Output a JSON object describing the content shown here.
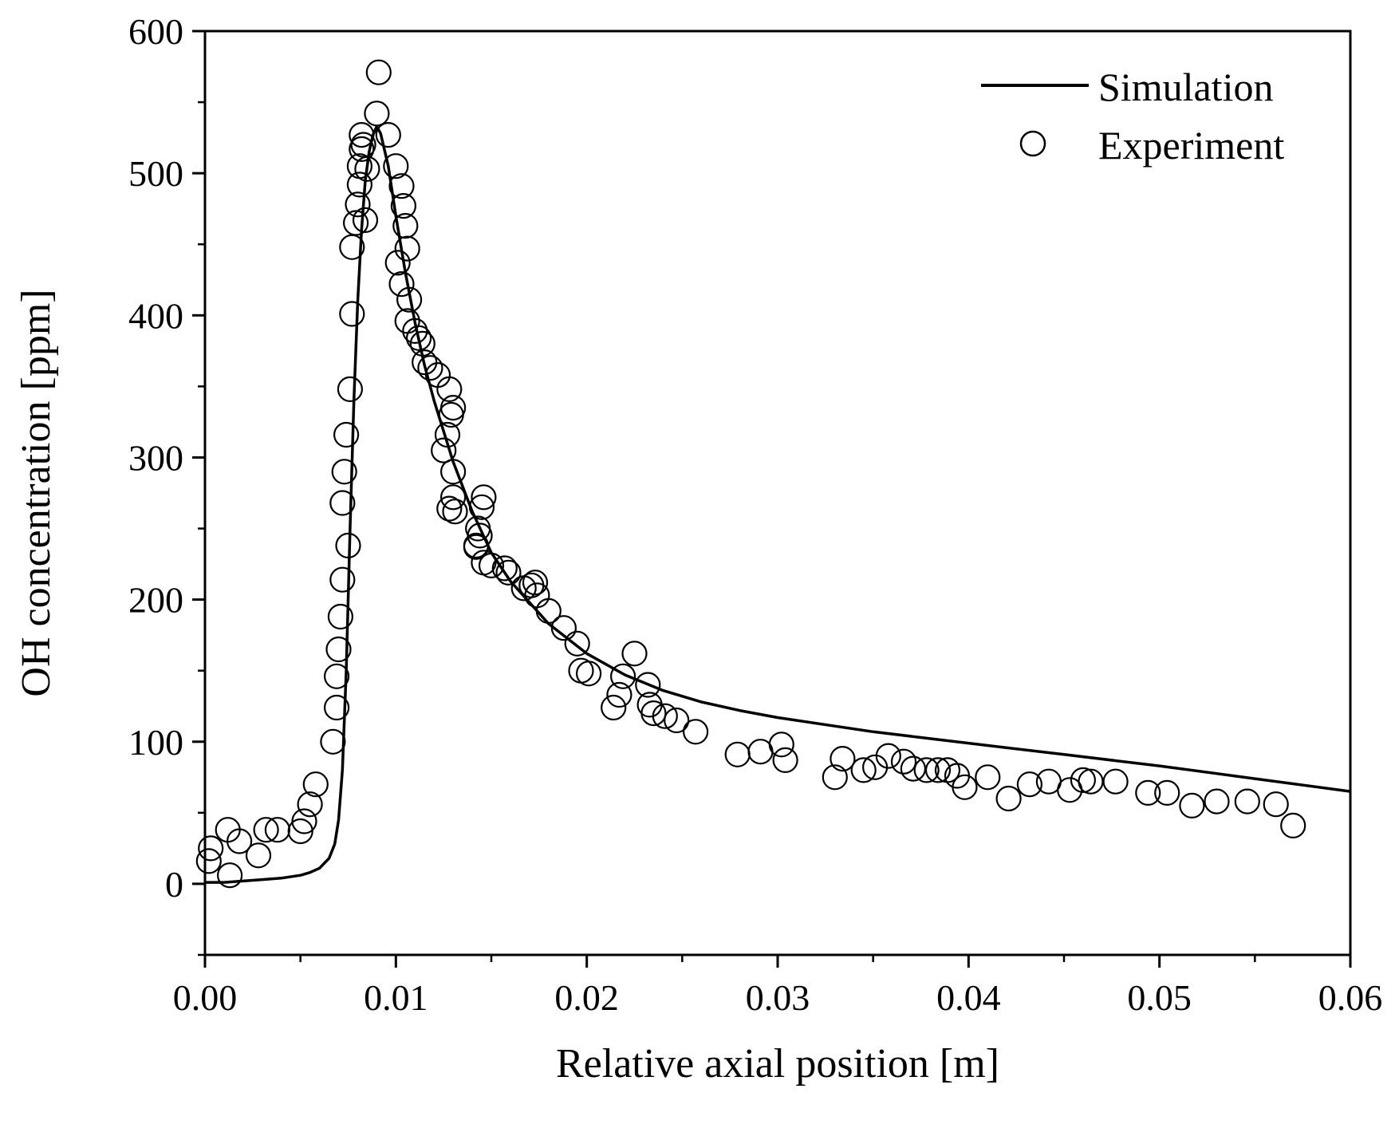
{
  "chart_data": {
    "type": "line",
    "title": "",
    "xlabel": "Relative axial position [m]",
    "ylabel": "OH concentration [ppm]",
    "xlim": [
      0.0,
      0.06
    ],
    "ylim": [
      -50,
      600
    ],
    "x_ticks": [
      "0.00",
      "0.01",
      "0.02",
      "0.03",
      "0.04",
      "0.05",
      "0.06"
    ],
    "y_ticks": [
      "0",
      "100",
      "200",
      "300",
      "400",
      "500",
      "600"
    ],
    "grid": false,
    "legend_position": "top-right",
    "series": [
      {
        "name": "Simulation",
        "style": "line",
        "color": "#000000",
        "x": [
          0.0,
          0.001,
          0.002,
          0.003,
          0.004,
          0.005,
          0.0055,
          0.006,
          0.0065,
          0.0068,
          0.007,
          0.0072,
          0.0074,
          0.0076,
          0.0078,
          0.008,
          0.0082,
          0.0084,
          0.0086,
          0.0088,
          0.009,
          0.0092,
          0.0096,
          0.01,
          0.0105,
          0.011,
          0.0115,
          0.012,
          0.013,
          0.014,
          0.015,
          0.016,
          0.018,
          0.02,
          0.022,
          0.024,
          0.026,
          0.028,
          0.03,
          0.035,
          0.04,
          0.045,
          0.05,
          0.055,
          0.06
        ],
        "y": [
          1,
          1,
          2,
          3,
          4,
          6,
          8,
          11,
          18,
          28,
          45,
          80,
          150,
          250,
          340,
          410,
          460,
          495,
          515,
          527,
          533,
          528,
          505,
          470,
          430,
          395,
          365,
          340,
          297,
          262,
          233,
          213,
          183,
          162,
          147,
          136,
          128,
          122,
          117,
          107,
          99,
          91,
          83,
          74,
          65
        ]
      },
      {
        "name": "Experiment",
        "style": "scatter",
        "marker": "open-circle",
        "color": "#000000",
        "x": [
          0.0002,
          0.0003,
          0.0012,
          0.0013,
          0.0018,
          0.0028,
          0.0032,
          0.0038,
          0.005,
          0.0052,
          0.0055,
          0.0058,
          0.0067,
          0.0069,
          0.0069,
          0.007,
          0.0071,
          0.0072,
          0.0072,
          0.0073,
          0.0074,
          0.0075,
          0.0076,
          0.0077,
          0.0077,
          0.0079,
          0.008,
          0.0081,
          0.0081,
          0.0082,
          0.0082,
          0.0083,
          0.0084,
          0.0085,
          0.009,
          0.0091,
          0.0096,
          0.01,
          0.0103,
          0.0104,
          0.0105,
          0.0106,
          0.0107,
          0.0101,
          0.0103,
          0.0106,
          0.011,
          0.0112,
          0.0114,
          0.0115,
          0.0118,
          0.0122,
          0.0125,
          0.0127,
          0.0128,
          0.013,
          0.013,
          0.0128,
          0.0129,
          0.013,
          0.0131,
          0.0142,
          0.0143,
          0.0145,
          0.0146,
          0.0144,
          0.0142,
          0.0146,
          0.015,
          0.0157,
          0.0159,
          0.0167,
          0.0171,
          0.0174,
          0.0173,
          0.018,
          0.0188,
          0.0195,
          0.0197,
          0.0201,
          0.0214,
          0.0217,
          0.0219,
          0.0225,
          0.0232,
          0.0233,
          0.0235,
          0.0241,
          0.0247,
          0.0257,
          0.0279,
          0.0291,
          0.0302,
          0.0304,
          0.033,
          0.0334,
          0.0345,
          0.0351,
          0.0358,
          0.0366,
          0.0371,
          0.0378,
          0.0384,
          0.0389,
          0.0394,
          0.0398,
          0.041,
          0.0421,
          0.0432,
          0.0442,
          0.0453,
          0.046,
          0.0464,
          0.0477,
          0.0494,
          0.0504,
          0.0517,
          0.053,
          0.0546,
          0.0561,
          0.057
        ],
        "y": [
          16,
          25,
          38,
          6,
          30,
          20,
          38,
          38,
          37,
          44,
          56,
          70,
          100,
          124,
          146,
          165,
          188,
          214,
          268,
          290,
          316,
          238,
          348,
          401,
          448,
          465,
          478,
          492,
          505,
          517,
          527,
          520,
          467,
          503,
          542,
          571,
          527,
          505,
          491,
          477,
          463,
          447,
          411,
          437,
          422,
          396,
          389,
          384,
          380,
          367,
          363,
          358,
          305,
          316,
          348,
          335,
          290,
          264,
          330,
          272,
          262,
          238,
          250,
          265,
          272,
          245,
          237,
          226,
          224,
          222,
          219,
          208,
          210,
          203,
          212,
          192,
          180,
          169,
          150,
          148,
          124,
          133,
          146,
          162,
          140,
          126,
          120,
          118,
          115,
          107,
          91,
          93,
          98,
          87,
          75,
          88,
          80,
          82,
          90,
          86,
          81,
          80,
          80,
          80,
          76,
          68,
          75,
          60,
          70,
          72,
          66,
          73,
          72,
          72,
          64,
          64,
          55,
          58,
          58,
          56,
          41
        ]
      }
    ]
  }
}
